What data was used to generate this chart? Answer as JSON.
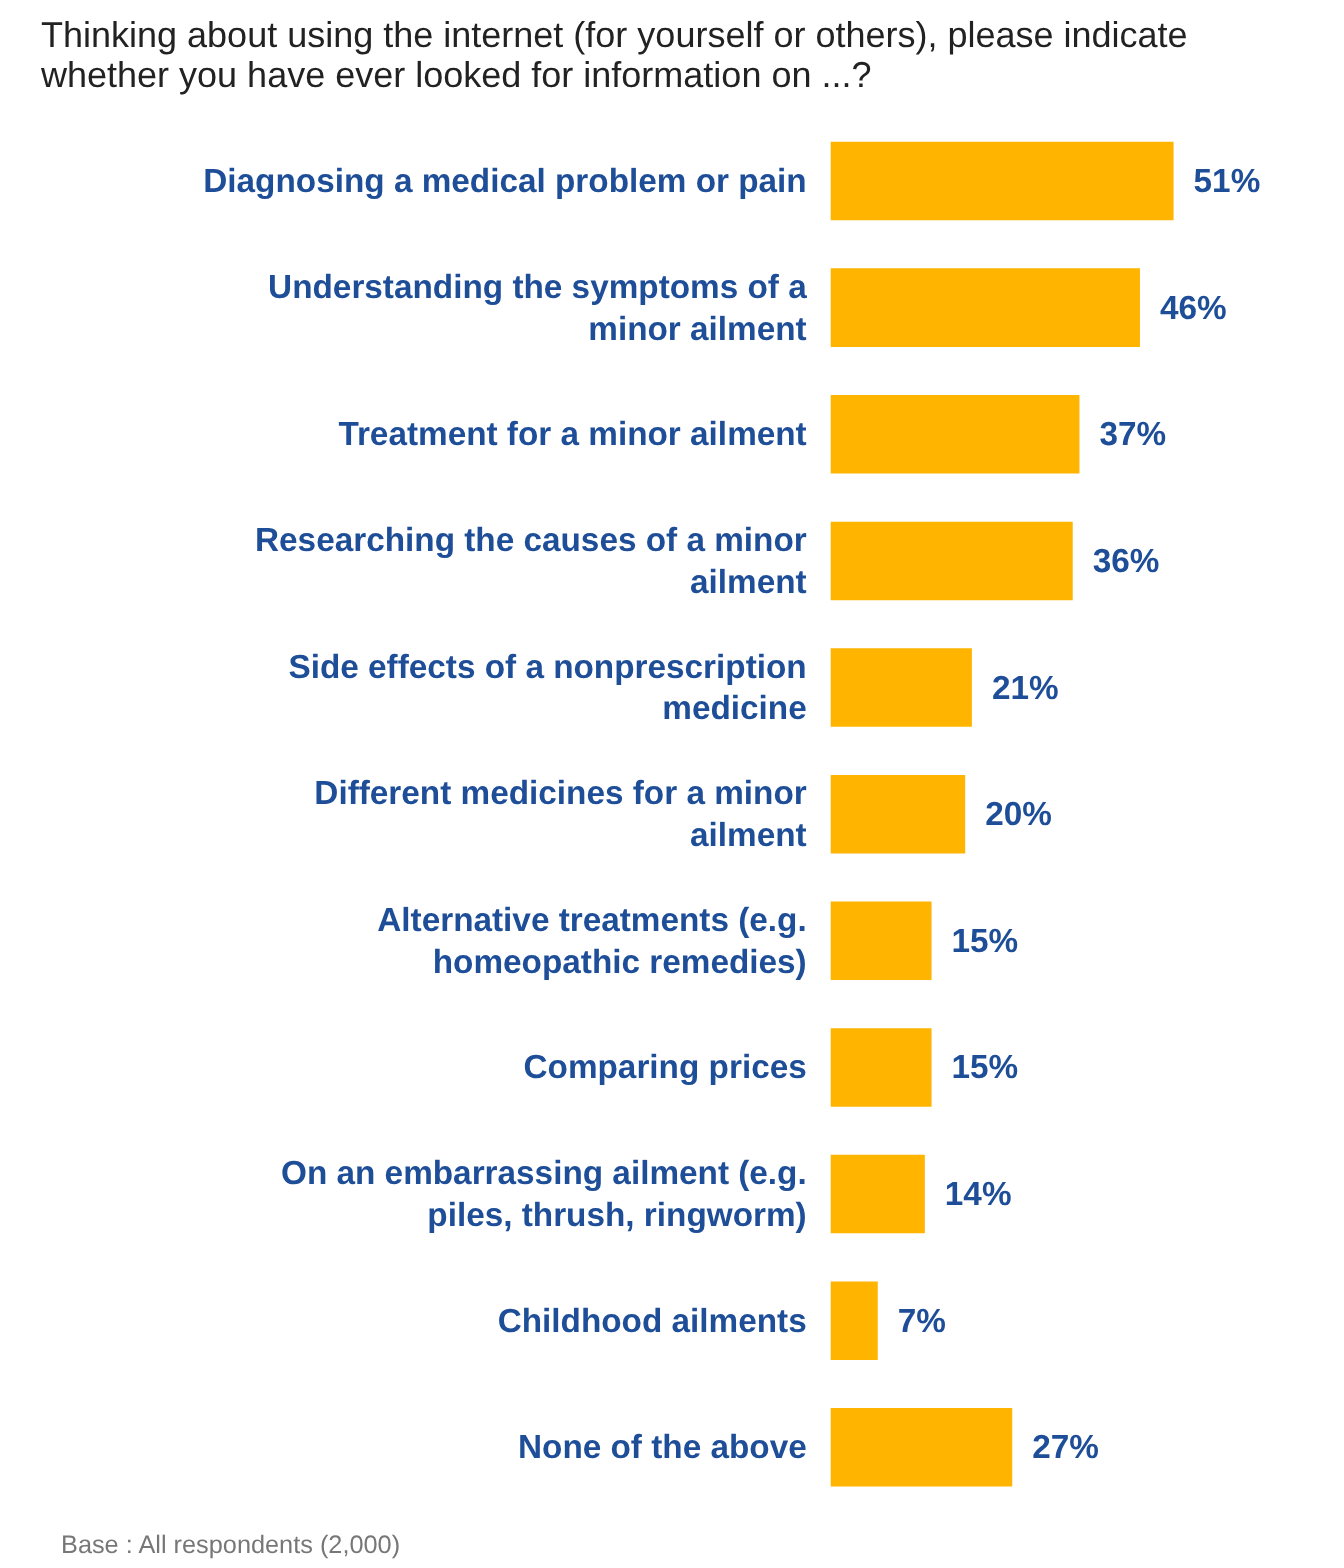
{
  "chart_data": {
    "type": "bar",
    "orientation": "horizontal",
    "title": "Thinking about using the internet (for yourself or others), please indicate whether you have ever looked for information on ...?",
    "categories": [
      "Diagnosing a medical problem or pain",
      "Understanding the symptoms of a minor ailment",
      "Treatment for a minor ailment",
      "Researching the causes of a minor ailment",
      "Side effects of a nonprescription medicine",
      "Different medicines for a minor ailment",
      "Alternative treatments (e.g. homeopathic remedies)",
      "Comparing prices",
      "On an embarrassing ailment (e.g. piles, thrush, ringworm)",
      "Childhood ailments",
      "None of the above"
    ],
    "values": [
      51,
      46,
      37,
      36,
      21,
      20,
      15,
      15,
      14,
      7,
      27
    ],
    "value_labels": [
      "51%",
      "46%",
      "37%",
      "36%",
      "21%",
      "20%",
      "15%",
      "15%",
      "14%",
      "7%",
      "27%"
    ],
    "color": "#ffb400",
    "grid": false,
    "annotations": [
      "Base : All respondents (2,000)"
    ]
  }
}
